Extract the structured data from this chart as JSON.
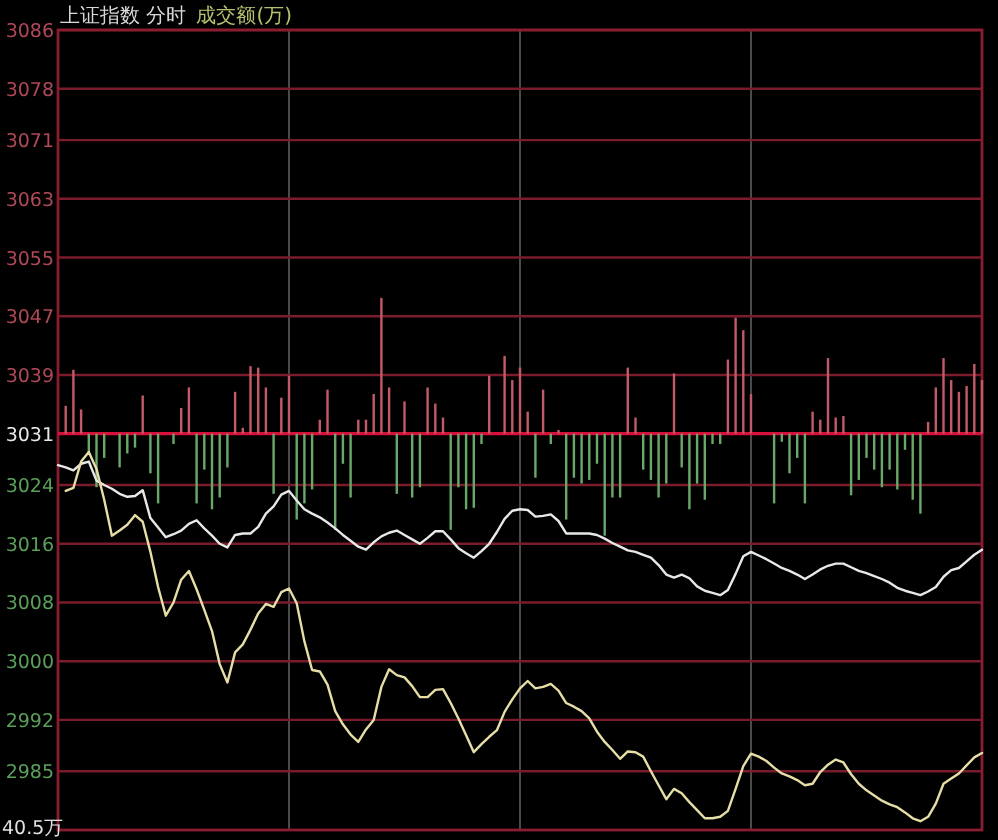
{
  "chart_data": {
    "type": "line",
    "title": "上证指数 分时",
    "subtitle": "成交额(万)",
    "annotations": [
      "40.5万"
    ],
    "categories": [
      null,
      null,
      null,
      null,
      null,
      null,
      null,
      null,
      null,
      null,
      null,
      null,
      null,
      null,
      null,
      null,
      null,
      null,
      null,
      null,
      null,
      null,
      null,
      null,
      null,
      null,
      null,
      null,
      null,
      null,
      null,
      null,
      null,
      null,
      null,
      null,
      null,
      null,
      null,
      null,
      null,
      null,
      null,
      null,
      null,
      null,
      null,
      null,
      null,
      null,
      null,
      null,
      null,
      null,
      null,
      null,
      null,
      null,
      null,
      null,
      null,
      null,
      null,
      null,
      null,
      null,
      null,
      null,
      null,
      null,
      null,
      null,
      null,
      null,
      null,
      null,
      null,
      null,
      null,
      null,
      null,
      null,
      null,
      null,
      null,
      null,
      null,
      null,
      null,
      null,
      null,
      null,
      null,
      null,
      null,
      null,
      null,
      null,
      null,
      null,
      null,
      null,
      null,
      null,
      null,
      null,
      null,
      null,
      null,
      null,
      null,
      null,
      null,
      null,
      null,
      null,
      null,
      null,
      null,
      null,
      null
    ],
    "ylim": [
      2977,
      3086
    ],
    "yticks": [
      3086,
      3078,
      3071,
      3063,
      3055,
      3047,
      3039,
      3031,
      3024,
      3016,
      3008,
      3000,
      2992,
      2985
    ],
    "grid": true,
    "tick_labels": "y",
    "ref_lines": [
      {
        "axis": "y",
        "value": 3031,
        "color": "#d8103c"
      }
    ],
    "series": [
      {
        "type": "bar",
        "values": [
          null,
          3.8,
          8.7,
          3.3,
          -2.7,
          -7.3,
          -3.3,
          null,
          -4.6,
          -2.7,
          -1.9,
          5.2,
          -5.4,
          -9.5,
          null,
          -1.4,
          3.5,
          6.3,
          -9.5,
          -4.9,
          -10.3,
          -8.7,
          -4.6,
          5.7,
          0.8,
          9.2,
          9.0,
          6.3,
          -8.2,
          4.9,
          7.9,
          -11.7,
          -9.5,
          -7.6,
          1.9,
          6.0,
          -13.1,
          -4.1,
          -8.7,
          1.9,
          1.9,
          5.4,
          18.5,
          6.3,
          -8.2,
          4.4,
          -8.7,
          -7.3,
          6.3,
          4.1,
          2.2,
          -13.1,
          -7.3,
          -10.3,
          -10.1,
          -1.4,
          7.9,
          null,
          10.6,
          7.3,
          9.0,
          3.0,
          -6.0,
          6.0,
          -1.4,
          0.5,
          -11.7,
          -6.0,
          -6.8,
          -6.3,
          -4.1,
          -13.9,
          -8.7,
          -8.7,
          9.0,
          2.2,
          -4.9,
          -6.3,
          -8.7,
          -6.8,
          8.2,
          -4.6,
          -10.3,
          -6.8,
          -9.0,
          -1.4,
          -1.4,
          10.1,
          15.8,
          14.1,
          5.4,
          null,
          null,
          -9.5,
          -1.1,
          -5.4,
          -3.3,
          -9.5,
          3.0,
          1.9,
          10.3,
          2.2,
          2.4,
          -8.4,
          -6.3,
          -3.3,
          -4.9,
          -7.3,
          -4.9,
          -7.6,
          -2.2,
          -9.0,
          -10.9,
          1.6,
          6.3,
          10.3,
          7.3,
          5.7,
          6.5,
          9.5,
          7.3
        ],
        "colors": [
          null,
          "#c25a68",
          "#c25a68",
          "#c25a68",
          "#6aa86a",
          "#6aa86a",
          "#6aa86a",
          null,
          "#6aa86a",
          "#6aa86a",
          "#6aa86a",
          "#c25a68",
          "#6aa86a",
          "#6aa86a",
          null,
          "#6aa86a",
          "#c25a68",
          "#c25a68",
          "#6aa86a",
          "#6aa86a",
          "#6aa86a",
          "#6aa86a",
          "#6aa86a",
          "#c25a68",
          "#c25a68",
          "#c25a68",
          "#c25a68",
          "#c25a68",
          "#6aa86a",
          "#c25a68",
          "#c25a68",
          "#6aa86a",
          "#6aa86a",
          "#6aa86a",
          "#c25a68",
          "#c25a68",
          "#6aa86a",
          "#6aa86a",
          "#6aa86a",
          "#c25a68",
          "#c25a68",
          "#c25a68",
          "#c25a68",
          "#c25a68",
          "#6aa86a",
          "#c25a68",
          "#6aa86a",
          "#6aa86a",
          "#c25a68",
          "#c25a68",
          "#c25a68",
          "#6aa86a",
          "#6aa86a",
          "#6aa86a",
          "#6aa86a",
          "#6aa86a",
          "#c25a68",
          null,
          "#c25a68",
          "#c25a68",
          "#c25a68",
          "#c25a68",
          "#6aa86a",
          "#c25a68",
          "#6aa86a",
          "#c25a68",
          "#6aa86a",
          "#6aa86a",
          "#6aa86a",
          "#6aa86a",
          "#6aa86a",
          "#6aa86a",
          "#6aa86a",
          "#6aa86a",
          "#c25a68",
          "#c25a68",
          "#6aa86a",
          "#6aa86a",
          "#6aa86a",
          "#6aa86a",
          "#c25a68",
          "#6aa86a",
          "#6aa86a",
          "#6aa86a",
          "#6aa86a",
          "#6aa86a",
          "#6aa86a",
          "#c25a68",
          "#c25a68",
          "#c25a68",
          "#c25a68",
          null,
          null,
          "#6aa86a",
          "#6aa86a",
          "#6aa86a",
          "#6aa86a",
          "#6aa86a",
          "#c25a68",
          "#c25a68",
          "#c25a68",
          "#c25a68",
          "#c25a68",
          "#6aa86a",
          "#6aa86a",
          "#6aa86a",
          "#6aa86a",
          "#6aa86a",
          "#6aa86a",
          "#6aa86a",
          "#6aa86a",
          "#6aa86a",
          "#6aa86a",
          "#c25a68",
          "#c25a68",
          "#c25a68",
          "#c25a68",
          "#c25a68",
          "#c25a68",
          "#c25a68",
          "#c25a68"
        ],
        "base": [
          null,
          3031,
          3031,
          3031,
          3031,
          3031,
          3031,
          null,
          3031,
          3031,
          3031,
          3031,
          3031,
          3031,
          null,
          3031,
          3031,
          3031,
          3031,
          3031,
          3031,
          3031,
          3031,
          3031,
          3031,
          3031,
          3031,
          3031,
          3031,
          3031,
          3031,
          3031,
          3031,
          3031,
          3031,
          3031,
          3031,
          3031,
          3031,
          3031,
          3031,
          3031,
          3031,
          3031,
          3031,
          3031,
          3031,
          3031,
          3031,
          3031,
          3031,
          3031,
          3031,
          3031,
          3031,
          3031,
          3031,
          null,
          3031,
          3031,
          3031,
          3031,
          3031,
          3031,
          3031,
          3031,
          3031,
          3031,
          3031,
          3031,
          3031,
          3031,
          3031,
          3031,
          3031,
          3031,
          3031,
          3031,
          3031,
          3031,
          3031,
          3031,
          3031,
          3031,
          3031,
          3031,
          3031,
          3031,
          3031,
          3031,
          3031,
          null,
          null,
          3031,
          3031,
          3031,
          3031,
          3031,
          3031,
          3031,
          3031,
          3031,
          3031,
          3031,
          3031,
          3031,
          3031,
          3031,
          3031,
          3031,
          3031,
          3031,
          3031,
          3031,
          3031,
          3031,
          3031,
          3031,
          3031,
          3031,
          3031
        ]
      },
      {
        "color": "#e8e8e8",
        "values": [
          3026.7,
          3026.4,
          3026.0,
          3026.9,
          3027.2,
          3024.6,
          3024.0,
          3023.5,
          3022.8,
          3022.4,
          3022.5,
          3023.3,
          3019.5,
          3018.2,
          3016.9,
          3017.3,
          3017.8,
          3018.7,
          3019.2,
          3018.1,
          3017.1,
          3016.0,
          3015.5,
          3017.2,
          3017.4,
          3017.4,
          3018.3,
          3020.1,
          3021.1,
          3022.7,
          3023.2,
          3021.9,
          3020.7,
          3020.1,
          3019.6,
          3018.9,
          3018.1,
          3017.2,
          3016.4,
          3015.6,
          3015.2,
          3016.2,
          3017.0,
          3017.5,
          3017.8,
          3017.2,
          3016.6,
          3016.0,
          3016.8,
          3017.7,
          3017.7,
          3016.6,
          3015.4,
          3014.7,
          3014.1,
          3015.0,
          3016.0,
          3017.6,
          3019.4,
          3020.5,
          3020.7,
          3020.6,
          3019.7,
          3019.8,
          3020.0,
          3019.1,
          3017.4,
          3017.4,
          3017.4,
          3017.4,
          3017.2,
          3016.7,
          3016.1,
          3015.6,
          3015.1,
          3014.9,
          3014.5,
          3014.1,
          3013.1,
          3011.8,
          3011.4,
          3011.8,
          3011.3,
          3010.2,
          3009.6,
          3009.3,
          3009.0,
          3009.7,
          3011.9,
          3014.3,
          3014.9,
          3014.4,
          3013.9,
          3013.3,
          3012.7,
          3012.3,
          3011.8,
          3011.2,
          3011.8,
          3012.5,
          3013.0,
          3013.3,
          3013.3,
          3012.8,
          3012.3,
          3012.0,
          3011.6,
          3011.2,
          3010.7,
          3010.0,
          3009.6,
          3009.3,
          3009.0,
          3009.5,
          3010.1,
          3011.5,
          3012.4,
          3012.7,
          3013.6,
          3014.5,
          3015.2
        ]
      },
      {
        "color": "#e6dea6",
        "values": [
          null,
          3023.2,
          3023.6,
          3027.2,
          3028.5,
          3026.2,
          3022.0,
          3017.1,
          3017.8,
          3018.6,
          3019.9,
          3019.0,
          3014.9,
          3010.1,
          3006.2,
          3008.0,
          3011.1,
          3012.3,
          3009.8,
          3007.0,
          3004.1,
          2999.6,
          2997.1,
          3001.2,
          3002.3,
          3004.3,
          3006.5,
          3007.8,
          3007.4,
          3009.4,
          3009.9,
          3007.9,
          3002.7,
          2998.8,
          2998.6,
          2996.8,
          2993.2,
          2991.4,
          2990.0,
          2989.0,
          2990.7,
          2992.0,
          2996.5,
          2998.9,
          2998.1,
          2997.8,
          2996.6,
          2995.1,
          2995.1,
          2996.1,
          2996.2,
          2994.3,
          2992.2,
          2989.9,
          2987.6,
          2988.7,
          2989.7,
          2990.6,
          2993.1,
          2994.8,
          2996.3,
          2997.3,
          2996.3,
          2996.5,
          2996.9,
          2996.0,
          2994.3,
          2993.8,
          2993.2,
          2992.2,
          2990.4,
          2989.0,
          2987.9,
          2986.7,
          2987.7,
          2987.6,
          2987.0,
          2985.0,
          2983.1,
          2981.2,
          2982.6,
          2982.0,
          2980.8,
          2979.7,
          2978.6,
          2978.6,
          2978.8,
          2979.6,
          2982.6,
          2985.7,
          2987.4,
          2987.0,
          2986.4,
          2985.5,
          2984.7,
          2984.3,
          2983.8,
          2983.1,
          2983.3,
          2984.9,
          2985.9,
          2986.6,
          2986.2,
          2984.6,
          2983.3,
          2982.4,
          2981.7,
          2981.0,
          2980.5,
          2980.1,
          2979.4,
          2978.6,
          2978.2,
          2978.8,
          2980.6,
          2983.3,
          2984.0,
          2984.7,
          2985.8,
          2986.9,
          2987.5
        ]
      }
    ]
  }
}
